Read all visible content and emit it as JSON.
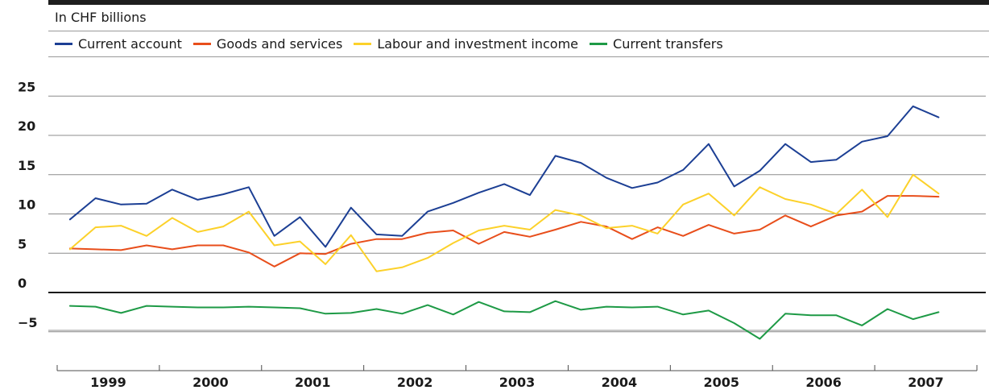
{
  "chart_data": {
    "type": "line",
    "subtitle": "In CHF billions",
    "x_labels": [
      "1999",
      "2000",
      "2001",
      "2002",
      "2003",
      "2004",
      "2005",
      "2006",
      "2007"
    ],
    "quarters_per_year": 4,
    "yticks": [
      "25",
      "20",
      "15",
      "10",
      "5",
      "0",
      "−5"
    ],
    "ytick_values": [
      25,
      20,
      15,
      10,
      5,
      0,
      -5
    ],
    "ylim": [
      -10,
      25
    ],
    "grid": true,
    "legend_position": "top-left",
    "series": [
      {
        "name": "Current account",
        "color": "#1c3f94",
        "values": [
          9.3,
          12.0,
          11.2,
          11.3,
          13.1,
          11.8,
          12.5,
          13.4,
          7.2,
          9.6,
          5.8,
          10.8,
          7.4,
          7.2,
          10.3,
          11.4,
          12.7,
          13.8,
          12.4,
          17.4,
          16.5,
          14.6,
          13.3,
          14.0,
          15.6,
          18.9,
          13.5,
          15.5,
          18.9,
          16.6,
          16.9,
          19.2,
          19.9,
          23.7,
          22.3
        ]
      },
      {
        "name": "Goods and services",
        "color": "#e84e1b",
        "values": [
          5.6,
          5.5,
          5.4,
          6.0,
          5.5,
          6.0,
          6.0,
          5.1,
          3.3,
          5.0,
          4.9,
          6.2,
          6.8,
          6.8,
          7.6,
          7.9,
          6.2,
          7.7,
          7.1,
          8.0,
          9.0,
          8.4,
          6.8,
          8.3,
          7.2,
          8.6,
          7.5,
          8.0,
          9.8,
          8.4,
          9.8,
          10.3,
          12.3,
          12.3,
          12.2
        ]
      },
      {
        "name": "Labour and investment income",
        "color": "#fcd12a",
        "values": [
          5.5,
          8.3,
          8.5,
          7.2,
          9.5,
          7.7,
          8.4,
          10.3,
          6.0,
          6.5,
          3.6,
          7.3,
          2.7,
          3.2,
          4.4,
          6.3,
          7.9,
          8.5,
          8.0,
          10.5,
          9.8,
          8.2,
          8.5,
          7.5,
          11.2,
          12.6,
          9.8,
          13.4,
          11.9,
          11.2,
          10.0,
          13.1,
          9.6,
          15.0,
          12.6
        ]
      },
      {
        "name": "Current transfers",
        "color": "#1e9a46",
        "values": [
          -1.7,
          -1.8,
          -2.6,
          -1.7,
          -1.8,
          -1.9,
          -1.9,
          -1.8,
          -1.9,
          -2.0,
          -2.7,
          -2.6,
          -2.1,
          -2.7,
          -1.6,
          -2.8,
          -1.2,
          -2.4,
          -2.5,
          -1.1,
          -2.2,
          -1.8,
          -1.9,
          -1.8,
          -2.8,
          -2.3,
          -3.9,
          -5.9,
          -2.7,
          -2.9,
          -2.9,
          -4.2,
          -2.1,
          -3.4,
          -2.5
        ]
      }
    ]
  }
}
